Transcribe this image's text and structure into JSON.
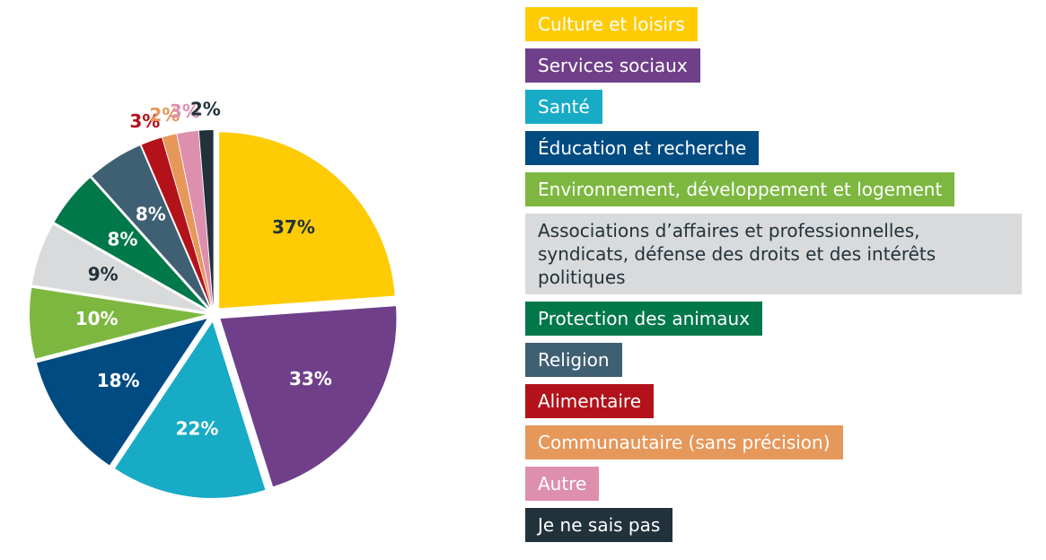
{
  "chart_data": {
    "type": "pie",
    "categories": [
      "Culture et loisirs",
      "Services sociaux",
      "Santé",
      "Éducation et recherche",
      "Environnement, développement et logement",
      "Associations d’affaires et professionnelles, syndicats, défense des droits et des intérêts politiques",
      "Protection des animaux",
      "Religion",
      "Alimentaire",
      "Communautaire (sans précision)",
      "Autre",
      "Je ne sais pas"
    ],
    "values": [
      37,
      33,
      22,
      18,
      10,
      9,
      8,
      8,
      3,
      2,
      3,
      2
    ],
    "value_labels": [
      "37%",
      "33%",
      "22%",
      "18%",
      "10%",
      "9%",
      "8%",
      "8%",
      "3%",
      "2%",
      "3%",
      "2%"
    ],
    "colors": [
      "#ffcb05",
      "#6f3f8a",
      "#17abc5",
      "#004b82",
      "#7db740",
      "#d9dadb",
      "#00784a",
      "#3f5f73",
      "#b3121b",
      "#e6975a",
      "#de8fae",
      "#22323b"
    ]
  }
}
